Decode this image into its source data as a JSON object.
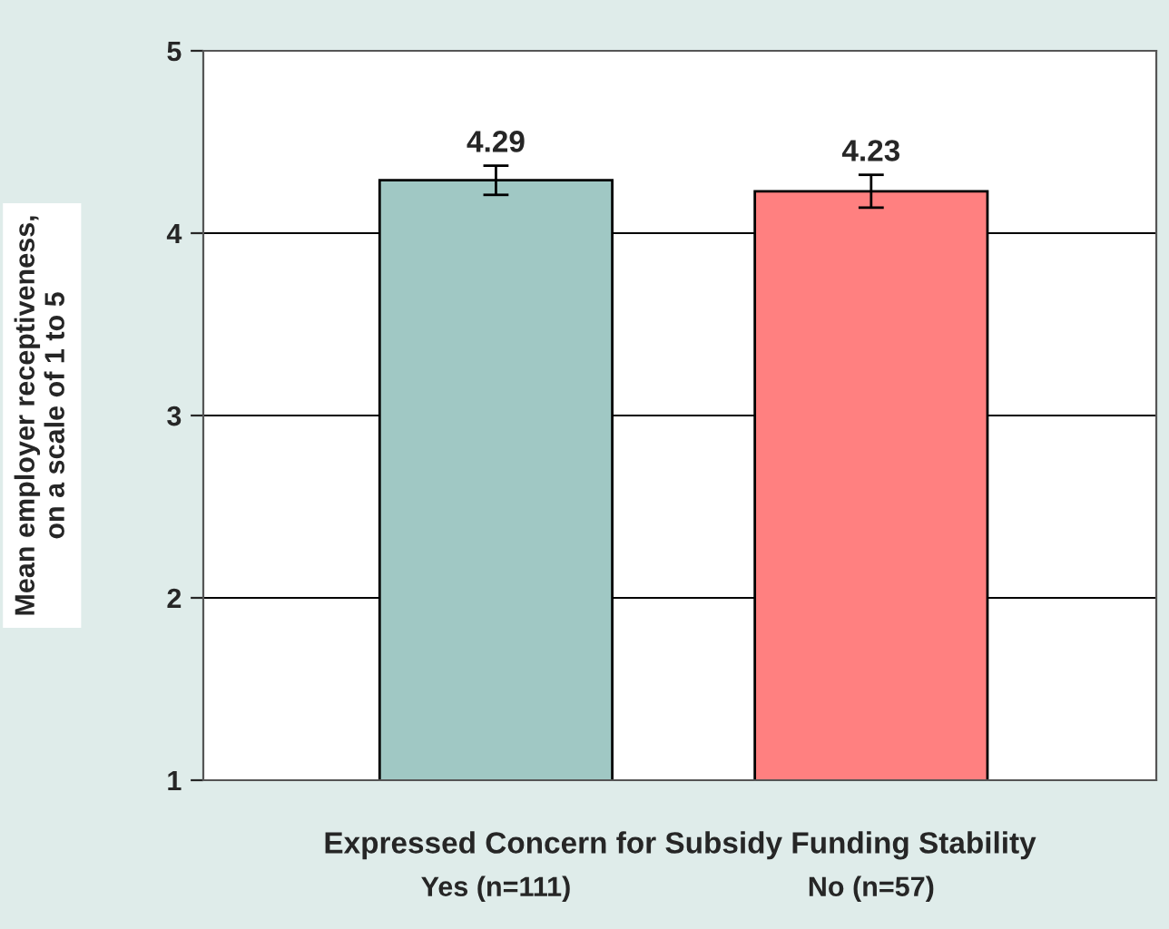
{
  "chart_data": {
    "type": "bar",
    "xlabel": "Expressed Concern for Subsidy Funding Stability",
    "ylabel": "Mean employer receptiveness,\non a scale of 1 to 5",
    "categories": [
      "Yes (n=111)",
      "No (n=57)"
    ],
    "values": [
      4.29,
      4.23
    ],
    "errors": [
      0.08,
      0.09
    ],
    "colors": [
      "#a0c8c4",
      "#ff8080"
    ],
    "ylim": [
      1,
      5
    ],
    "yticks": [
      1,
      2,
      3,
      4,
      5
    ],
    "grid": "y",
    "data_labels": true,
    "legend": false
  }
}
